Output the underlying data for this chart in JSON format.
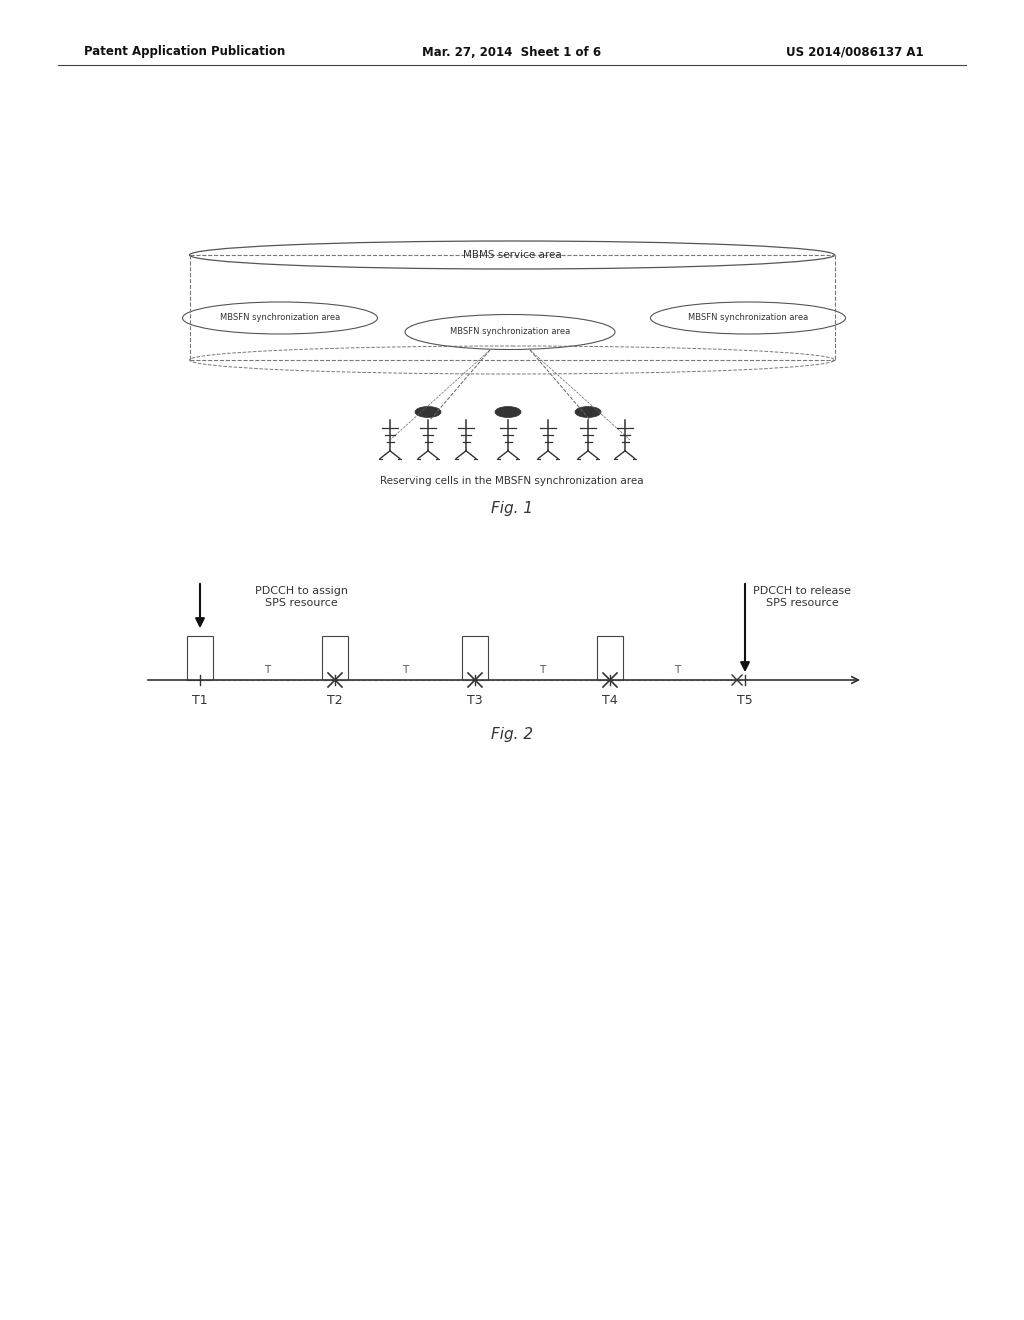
{
  "background_color": "#ffffff",
  "header_left": "Patent Application Publication",
  "header_center": "Mar. 27, 2014  Sheet 1 of 6",
  "header_right": "US 2014/0086137 A1",
  "fig1_title": "Fig. 1",
  "fig2_title": "Fig. 2",
  "mbms_label": "MBMS service area",
  "mbsfn_left_label": "MBSFN synchronization area",
  "mbsfn_center_label": "MBSFN synchronization area",
  "mbsfn_right_label": "MBSFN synchronization area",
  "reserving_label": "Reserving cells in the MBSFN synchronization area",
  "pdcch_assign_label": "PDCCH to assign\nSPS resource",
  "pdcch_release_label": "PDCCH to release\nSPS resource",
  "timeline_labels": [
    "T1",
    "T2",
    "T3",
    "T4",
    "T5"
  ],
  "text_color": "#333333",
  "line_color": "#555555"
}
